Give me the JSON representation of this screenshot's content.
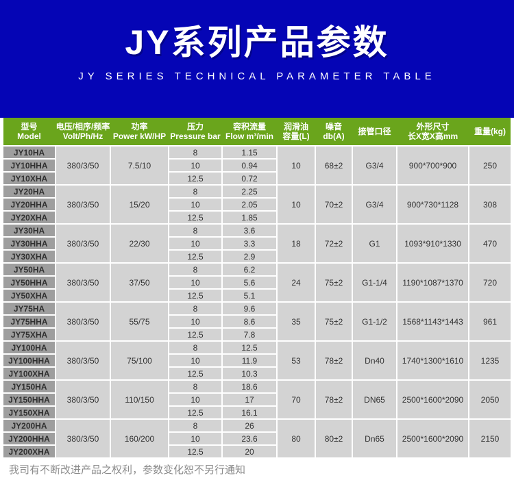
{
  "banner": {
    "title": "JY系列产品参数",
    "subtitle": "JY SERIES TECHNICAL PARAMETER TABLE",
    "bg_color": "#0505b5"
  },
  "table": {
    "header_bg_color": "#6aa51c",
    "model_cell_color": "#9e9e9e",
    "data_cell_color": "#d3d3d3",
    "columns": [
      {
        "key": "model",
        "zh": "型号",
        "en": "Model"
      },
      {
        "key": "volt",
        "zh": "电压/相序/频率",
        "en": "Volt/Ph/Hz"
      },
      {
        "key": "power",
        "zh": "功率",
        "en": "Power kW/HP"
      },
      {
        "key": "pressure",
        "zh": "压力",
        "en": "Pressure bar"
      },
      {
        "key": "flow",
        "zh": "容积流量",
        "en": "Flow m³/min"
      },
      {
        "key": "oil",
        "zh": "润滑油",
        "en": "容量(L)"
      },
      {
        "key": "noise",
        "zh": "噪音",
        "en": "db(A)"
      },
      {
        "key": "pipe",
        "zh": "接管口径",
        "en": ""
      },
      {
        "key": "dims",
        "zh": "外形尺寸",
        "en": "长X宽X高mm"
      },
      {
        "key": "weight",
        "zh": "重量(kg)",
        "en": ""
      }
    ],
    "groups": [
      {
        "models": [
          "JY10HA",
          "JY10HHA",
          "JY10XHA"
        ],
        "volt": "380/3/50",
        "power": "7.5/10",
        "pressures": [
          "8",
          "10",
          "12.5"
        ],
        "flows": [
          "1.15",
          "0.94",
          "0.72"
        ],
        "oil": "10",
        "noise": "68±2",
        "pipe": "G3/4",
        "dims": "900*700*900",
        "weight": "250"
      },
      {
        "models": [
          "JY20HA",
          "JY20HHA",
          "JY20XHA"
        ],
        "volt": "380/3/50",
        "power": "15/20",
        "pressures": [
          "8",
          "10",
          "12.5"
        ],
        "flows": [
          "2.25",
          "2.05",
          "1.85"
        ],
        "oil": "10",
        "noise": "70±2",
        "pipe": "G3/4",
        "dims": "900*730*1128",
        "weight": "308"
      },
      {
        "models": [
          "JY30HA",
          "JY30HHA",
          "JY30XHA"
        ],
        "volt": "380/3/50",
        "power": "22/30",
        "pressures": [
          "8",
          "10",
          "12.5"
        ],
        "flows": [
          "3.6",
          "3.3",
          "2.9"
        ],
        "oil": "18",
        "noise": "72±2",
        "pipe": "G1",
        "dims": "1093*910*1330",
        "weight": "470"
      },
      {
        "models": [
          "JY50HA",
          "JY50HHA",
          "JY50XHA"
        ],
        "volt": "380/3/50",
        "power": "37/50",
        "pressures": [
          "8",
          "10",
          "12.5"
        ],
        "flows": [
          "6.2",
          "5.6",
          "5.1"
        ],
        "oil": "24",
        "noise": "75±2",
        "pipe": "G1-1/4",
        "dims": "1190*1087*1370",
        "weight": "720"
      },
      {
        "models": [
          "JY75HA",
          "JY75HHA",
          "JY75XHA"
        ],
        "volt": "380/3/50",
        "power": "55/75",
        "pressures": [
          "8",
          "10",
          "12.5"
        ],
        "flows": [
          "9.6",
          "8.6",
          "7.8"
        ],
        "oil": "35",
        "noise": "75±2",
        "pipe": "G1-1/2",
        "dims": "1568*1143*1443",
        "weight": "961"
      },
      {
        "models": [
          "JY100HA",
          "JY100HHA",
          "JY100XHA"
        ],
        "volt": "380/3/50",
        "power": "75/100",
        "pressures": [
          "8",
          "10",
          "12.5"
        ],
        "flows": [
          "12.5",
          "11.9",
          "10.3"
        ],
        "oil": "53",
        "noise": "78±2",
        "pipe": "Dn40",
        "dims": "1740*1300*1610",
        "weight": "1235"
      },
      {
        "models": [
          "JY150HA",
          "JY150HHA",
          "JY150XHA"
        ],
        "volt": "380/3/50",
        "power": "110/150",
        "pressures": [
          "8",
          "10",
          "12.5"
        ],
        "flows": [
          "18.6",
          "17",
          "16.1"
        ],
        "oil": "70",
        "noise": "78±2",
        "pipe": "DN65",
        "dims": "2500*1600*2090",
        "weight": "2050"
      },
      {
        "models": [
          "JY200HA",
          "JY200HHA",
          "JY200XHA"
        ],
        "volt": "380/3/50",
        "power": "160/200",
        "pressures": [
          "8",
          "10",
          "12.5"
        ],
        "flows": [
          "26",
          "23.6",
          "20"
        ],
        "oil": "80",
        "noise": "80±2",
        "pipe": "Dn65",
        "dims": "2500*1600*2090",
        "weight": "2150"
      }
    ]
  },
  "footer": {
    "note": "我司有不断改进产品之权利，参数变化恕不另行通知"
  }
}
